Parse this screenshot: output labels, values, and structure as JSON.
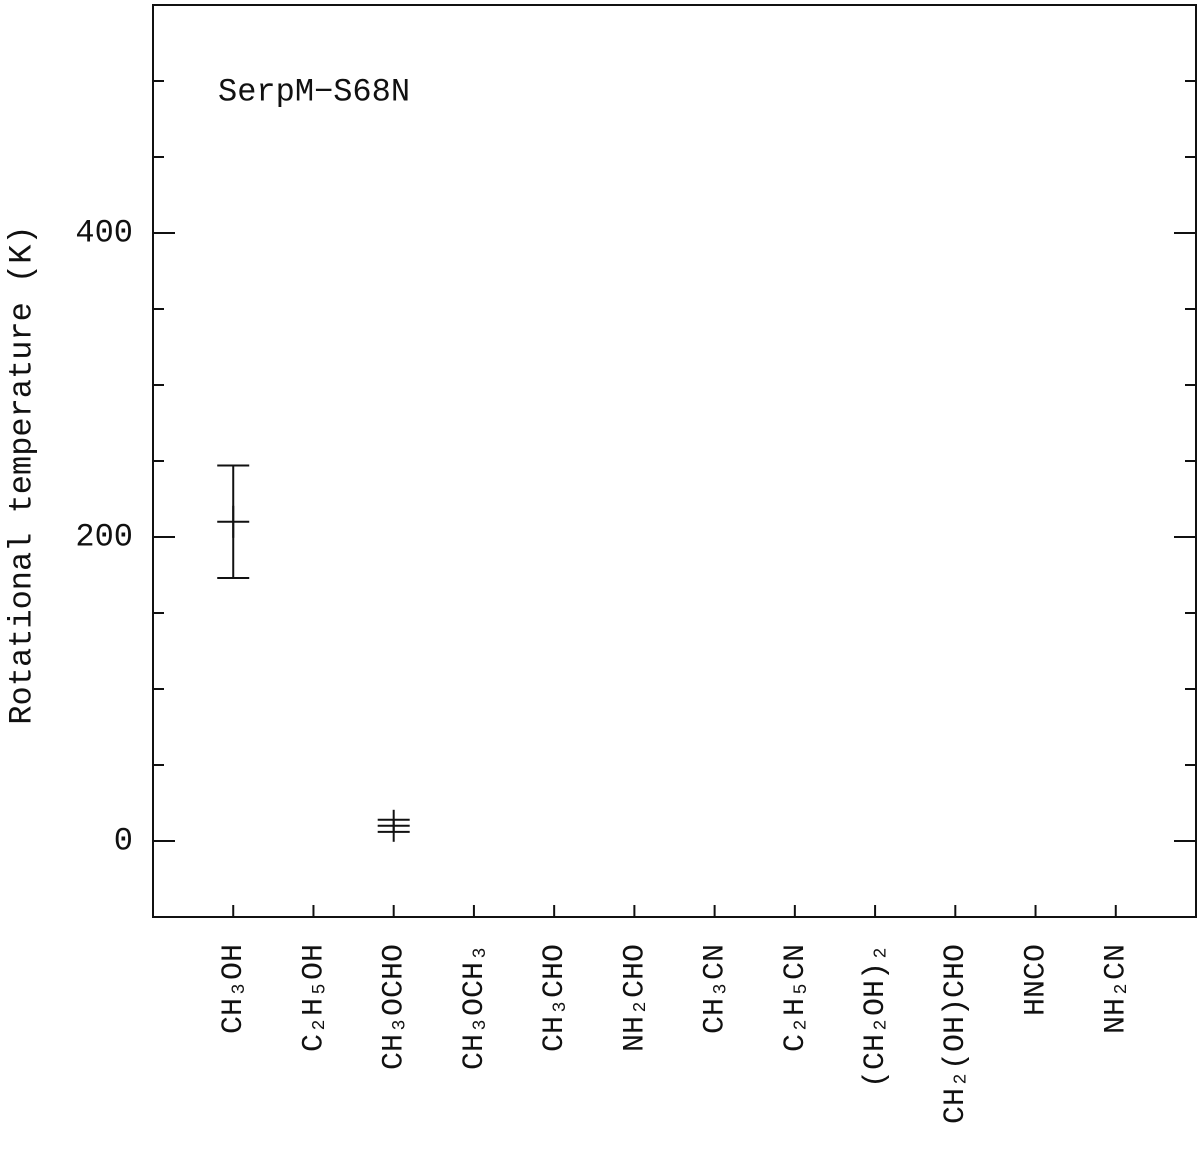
{
  "chart_data": {
    "type": "errorbar",
    "ylabel": "Rotational temperature (K)",
    "annotation": "SerpM−S68N",
    "categories": [
      "CH₃OH",
      "C₂H₅OH",
      "CH₃OCHO",
      "CH₃OCH₃",
      "CH₃CHO",
      "NH₂CHO",
      "CH₃CN",
      "C₂H₅CN",
      "(CH₂OH)₂",
      "CH₂(OH)CHO",
      "HNCO",
      "NH₂CN"
    ],
    "values": [
      210,
      null,
      10,
      null,
      null,
      null,
      null,
      null,
      null,
      null,
      null,
      null
    ],
    "errors": [
      37,
      null,
      4,
      null,
      null,
      null,
      null,
      null,
      null,
      null,
      null,
      null
    ],
    "color": "#111111",
    "ylim": [
      -50,
      550
    ],
    "yticks": [
      0,
      200,
      400
    ],
    "yminorticks": [
      0,
      50,
      100,
      150,
      200,
      250,
      300,
      350,
      400,
      450,
      500
    ]
  }
}
